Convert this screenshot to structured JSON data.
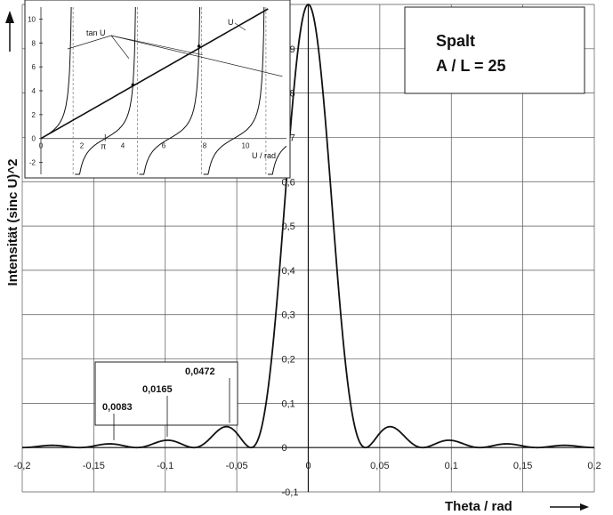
{
  "chart_data": {
    "type": "line",
    "xlabel": "Theta  / rad",
    "ylabel": "Intensität  (sinc U)^2",
    "xlim": [
      -0.2,
      0.2
    ],
    "ylim": [
      -0.1,
      1.0
    ],
    "x_ticks": [
      "-0,2",
      "-0,15",
      "-0,1",
      "-0,05",
      "0",
      "0,05",
      "0,1",
      "0,15",
      "0,2"
    ],
    "y_ticks": [
      "-0,1",
      "0",
      "0,1",
      "0,2",
      "0,3",
      "0,4",
      "0,5",
      "0,6",
      "0,7",
      "0,8",
      "0,9",
      "1"
    ],
    "grid": true,
    "curve": "(sinc U)^2 single-slit diffraction, first zeros near ±0,04 rad",
    "info_box": {
      "line1": "Spalt",
      "line2": "A / L  =  25"
    },
    "annotations": [
      {
        "text": "0,0472",
        "x": -0.06,
        "y": 0.0472
      },
      {
        "text": "0,0165",
        "x": -0.1,
        "y": 0.0165
      },
      {
        "text": "0,0083",
        "x": -0.14,
        "y": 0.0083
      }
    ],
    "inset": {
      "xlabel": "U / rad",
      "x_ticks": [
        "0",
        "2",
        "4",
        "6",
        "8",
        "10"
      ],
      "y_ticks": [
        "-2",
        "0",
        "2",
        "4",
        "6",
        "8",
        "10"
      ],
      "pi_label": "π",
      "xlim": [
        0,
        12
      ],
      "ylim": [
        -3,
        11
      ],
      "line_label": "U",
      "tan_label": "tan U",
      "series": [
        {
          "name": "tan U"
        },
        {
          "name": "U"
        }
      ]
    }
  }
}
